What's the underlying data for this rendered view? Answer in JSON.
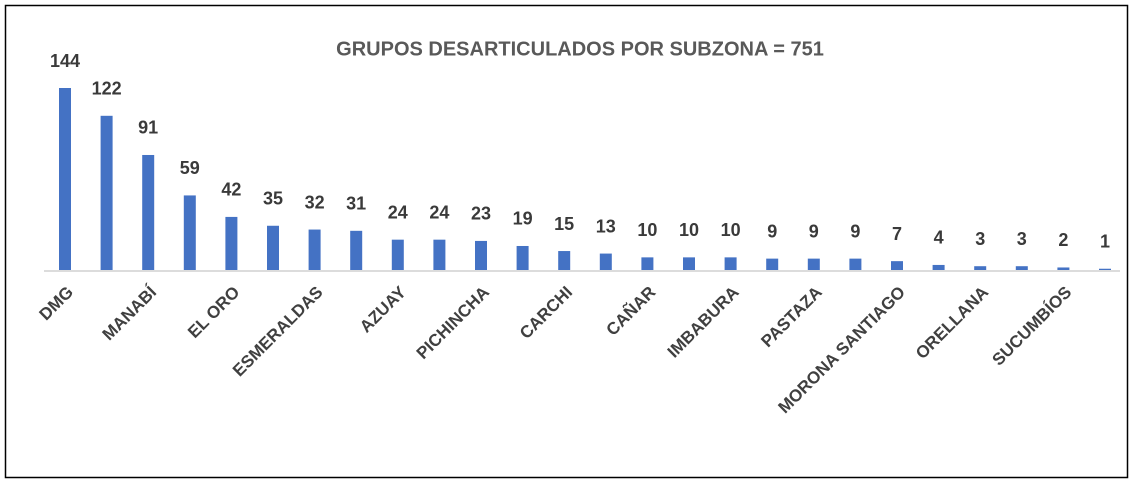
{
  "chart_data": {
    "type": "bar",
    "title": "GRUPOS DESARTICULADOS POR SUBZONA = 751",
    "categories": [
      "DMG",
      null,
      "MANABÍ",
      null,
      "EL ORO",
      null,
      "ESMERALDAS",
      null,
      "AZUAY",
      null,
      "PICHINCHA",
      null,
      "CARCHI",
      null,
      "CAÑAR",
      null,
      "IMBABURA",
      null,
      "PASTAZA",
      null,
      "MORONA SANTIAGO",
      null,
      "ORELLANA",
      null,
      "SUCUMBÍOS",
      null
    ],
    "values": [
      144,
      122,
      91,
      59,
      42,
      35,
      32,
      31,
      24,
      24,
      23,
      19,
      15,
      13,
      10,
      10,
      10,
      9,
      9,
      9,
      7,
      4,
      3,
      3,
      2,
      1
    ],
    "color": "#4472c4"
  }
}
